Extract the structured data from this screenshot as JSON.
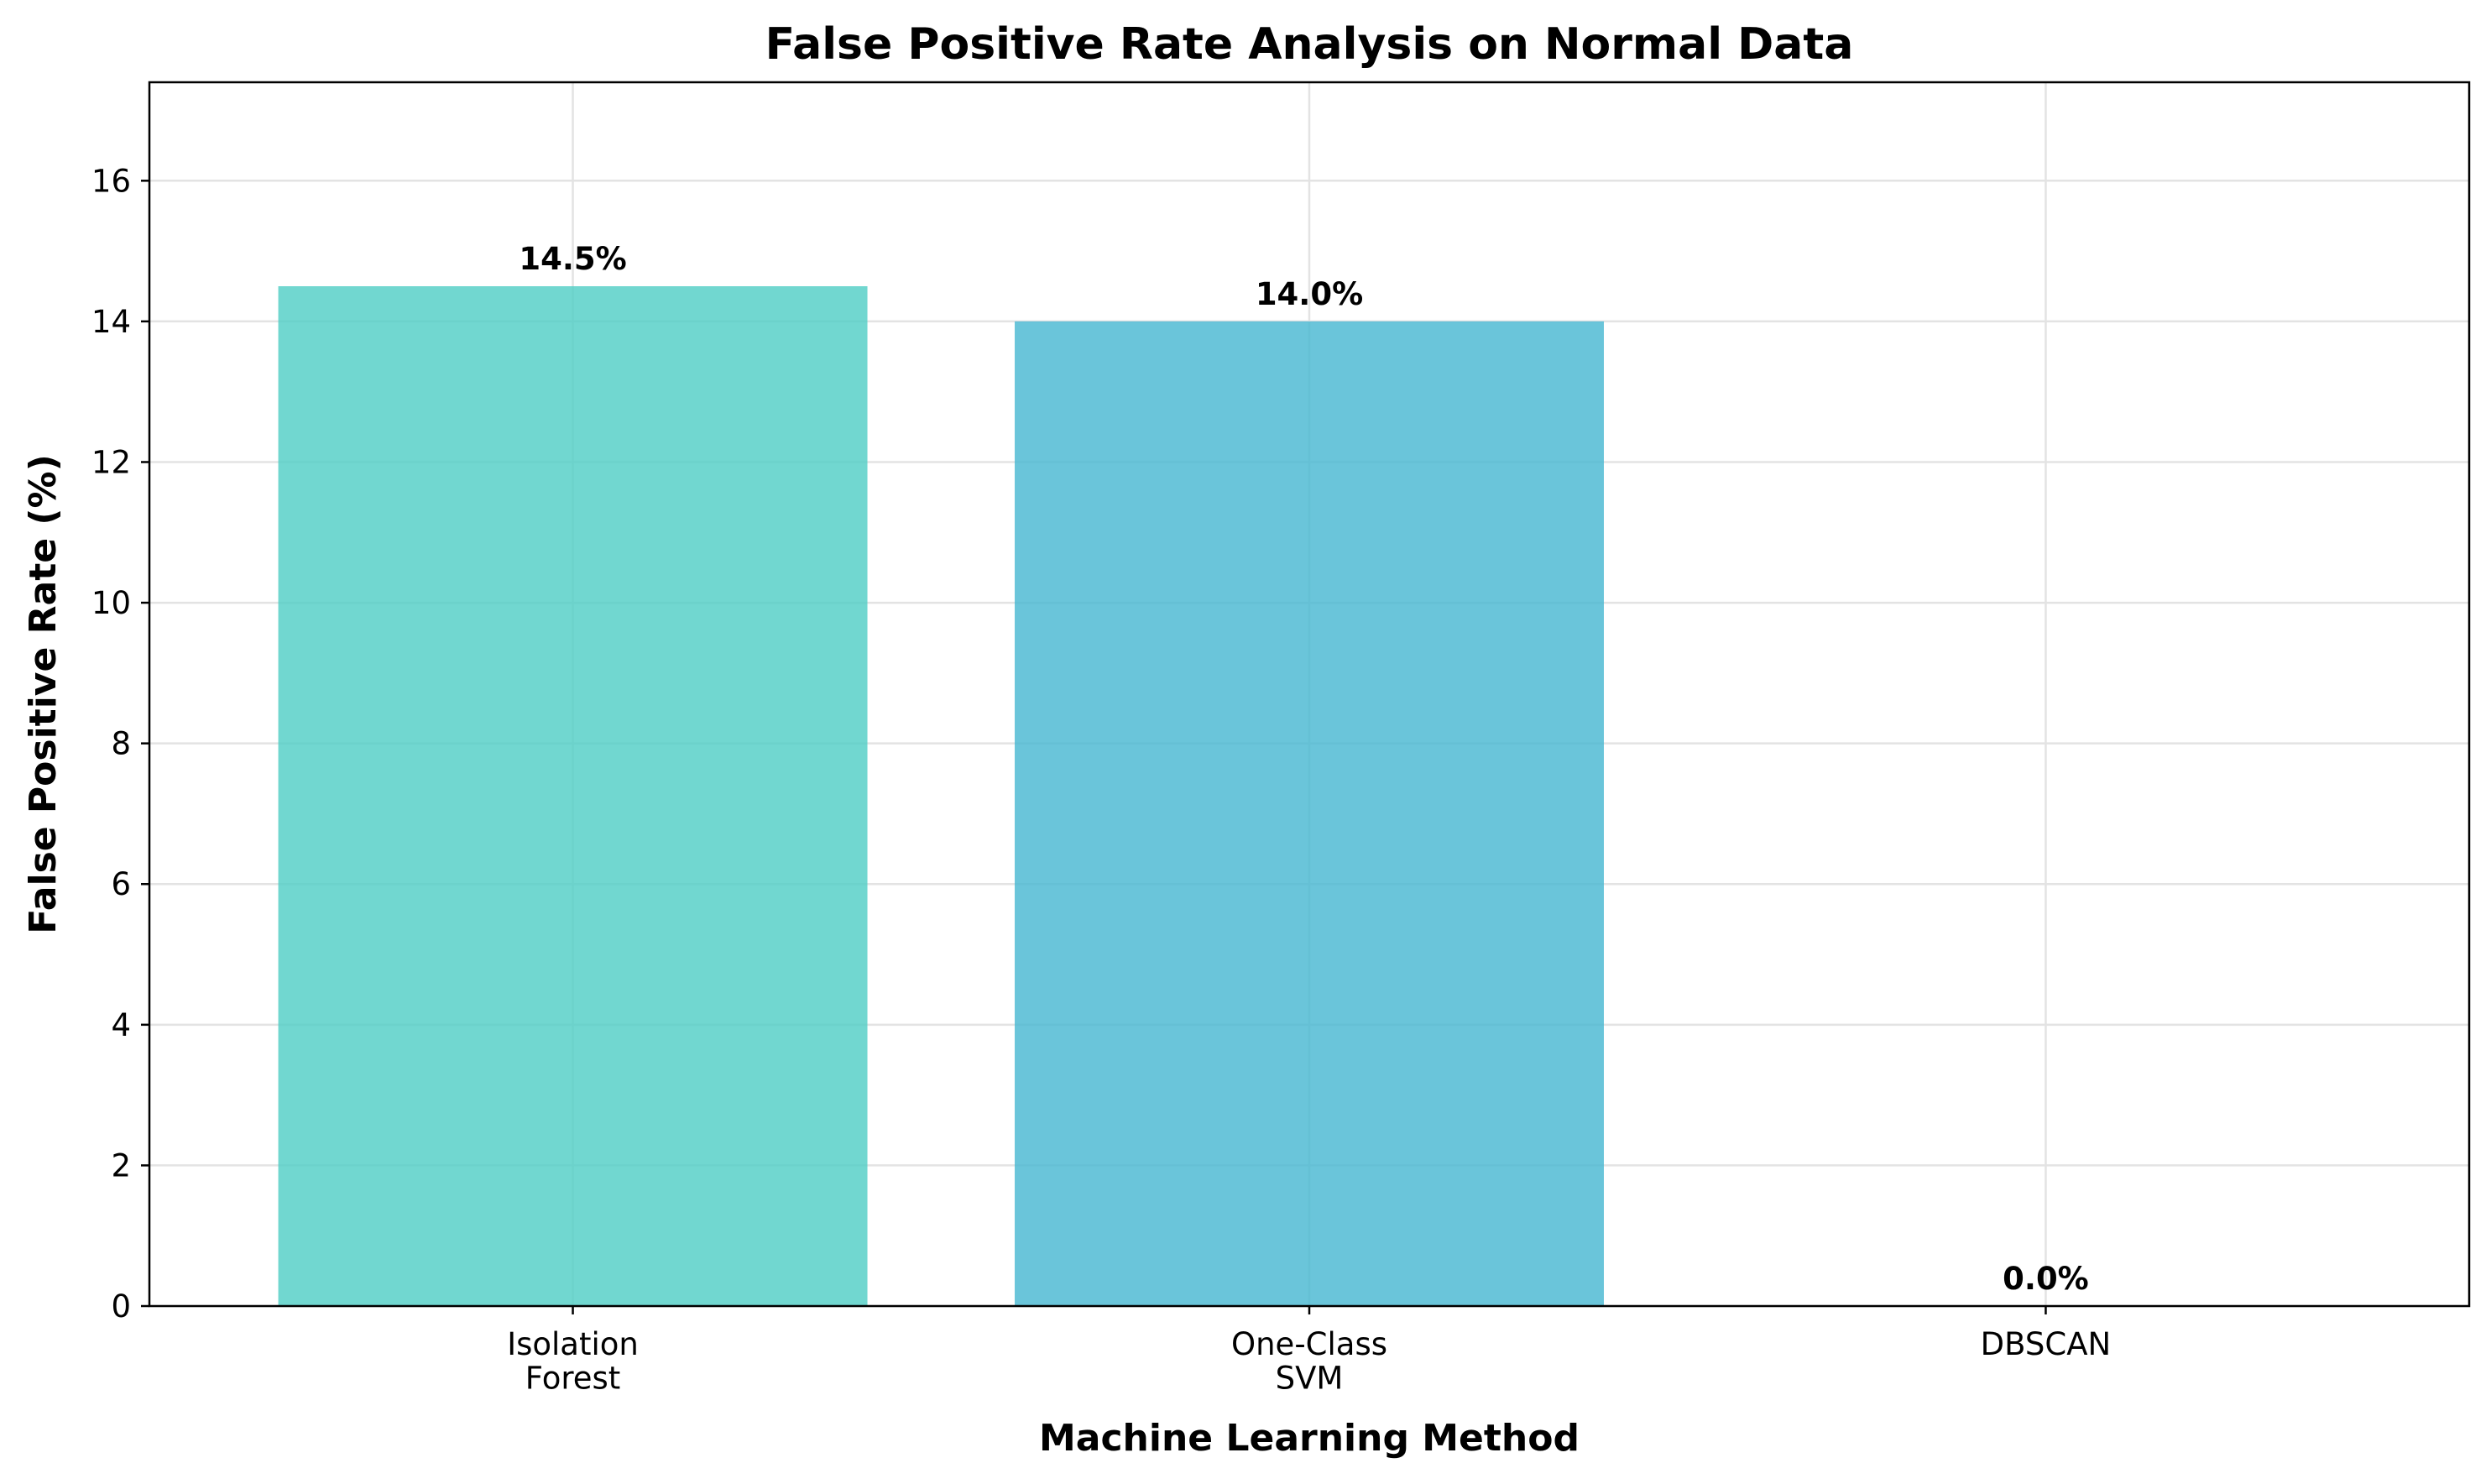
{
  "chart_data": {
    "type": "bar",
    "title": "False Positive Rate Analysis on Normal Data",
    "xlabel": "Machine Learning Method",
    "ylabel": "False Positive Rate (%)",
    "categories": [
      [
        "Isolation",
        "Forest"
      ],
      [
        "One-Class",
        "SVM"
      ],
      [
        "DBSCAN"
      ]
    ],
    "values": [
      14.5,
      14.0,
      0.0
    ],
    "data_labels": [
      "14.5%",
      "14.0%",
      "0.0%"
    ],
    "colors": [
      "#4ecdc4",
      "#45b7d1",
      "#96ceb4"
    ],
    "ylim": [
      0,
      17.4
    ],
    "yticks": [
      0,
      2,
      4,
      6,
      8,
      10,
      12,
      14,
      16
    ],
    "grid": true
  }
}
